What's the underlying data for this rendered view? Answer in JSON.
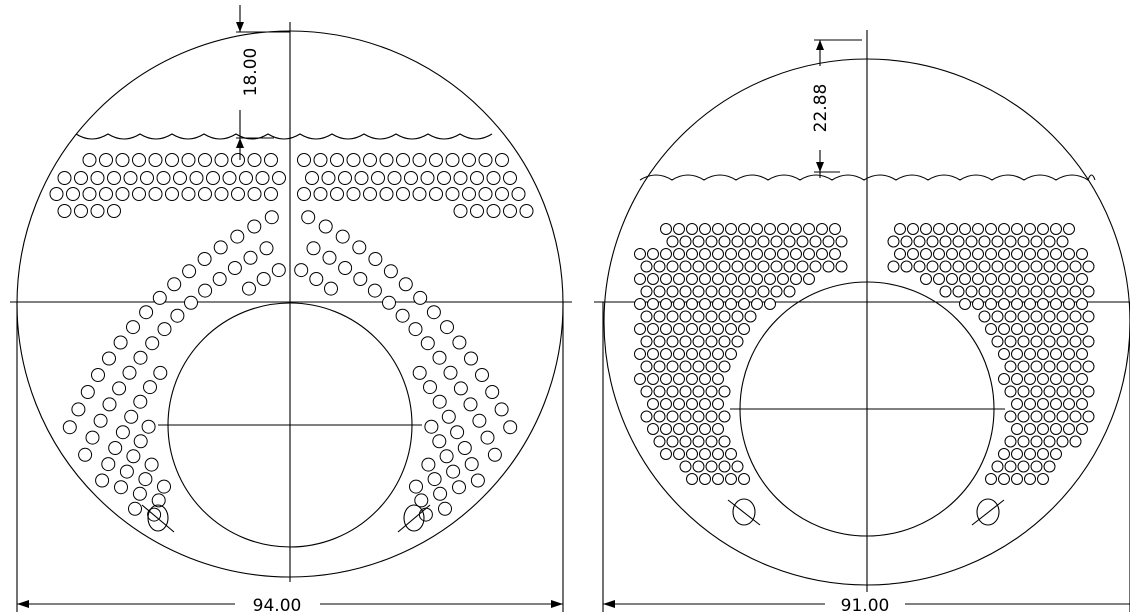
{
  "drawings": [
    {
      "id": "left",
      "width_label": "94.00",
      "water_gap_label": "18.00",
      "tube_holes": "arc-pattern"
    },
    {
      "id": "right",
      "width_label": "91.00",
      "water_gap_label": "22.88",
      "tube_holes": "staggered-pattern"
    }
  ],
  "colors": {
    "line": "#000000",
    "background": "#ffffff"
  }
}
